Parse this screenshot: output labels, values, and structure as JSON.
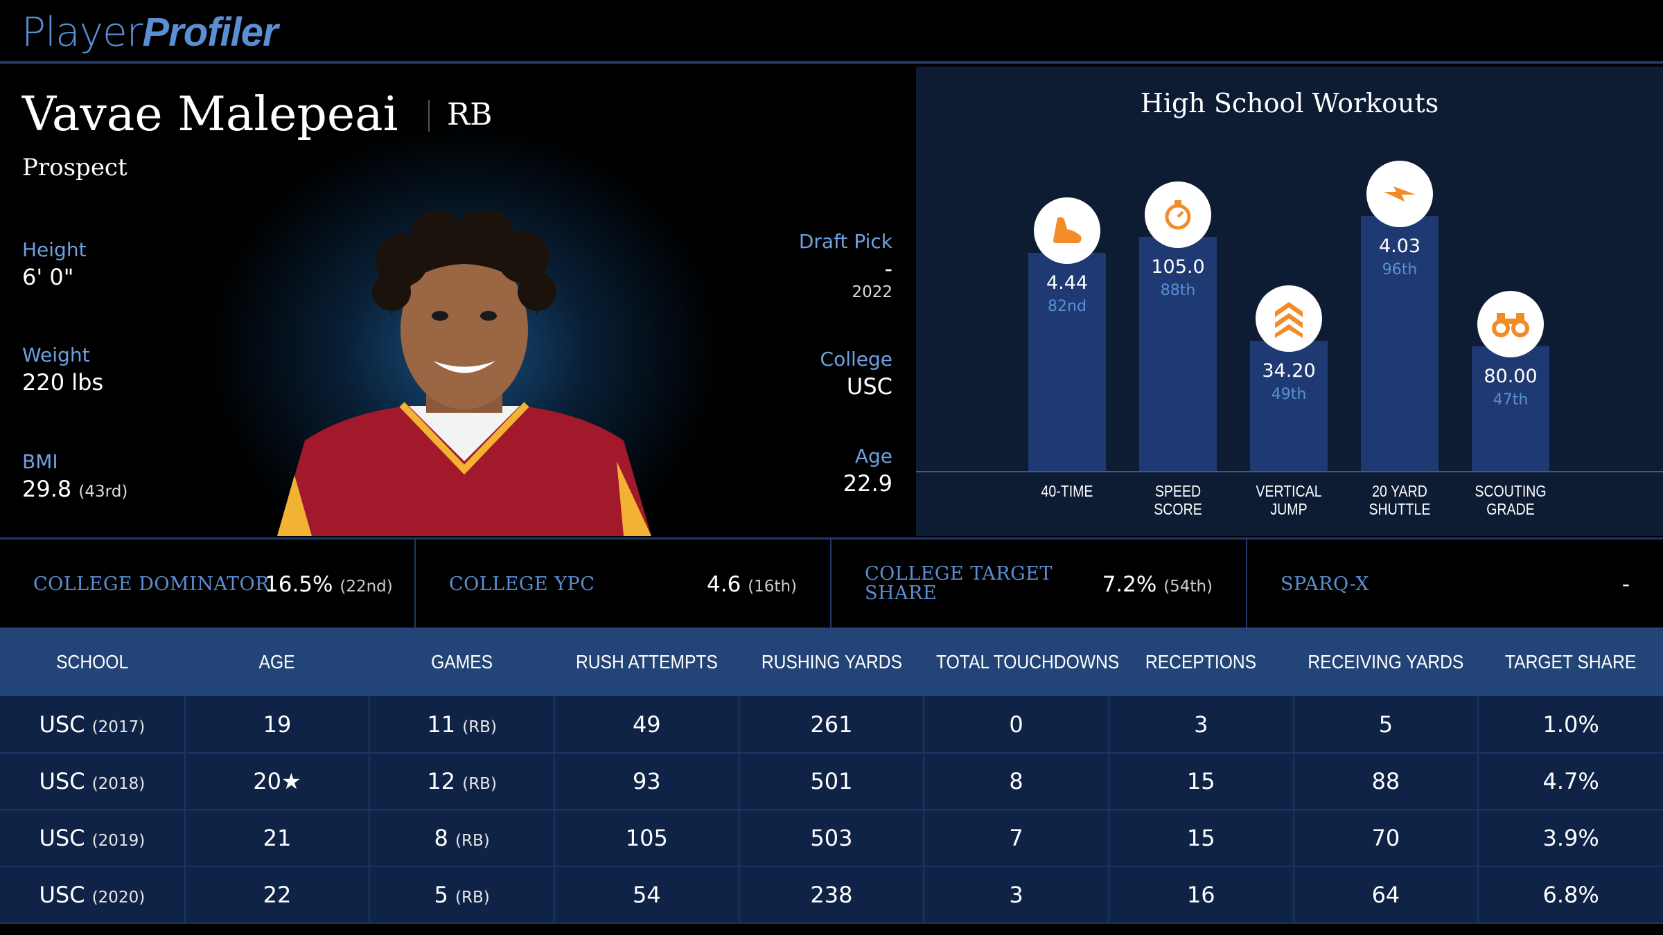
{
  "brand": {
    "logo_part1": "Player",
    "logo_part2": "Profiler"
  },
  "player": {
    "name": "Vavae Malepeai",
    "position": "RB",
    "status": "Prospect",
    "height_label": "Height",
    "height": "6' 0\"",
    "weight_label": "Weight",
    "weight": "220 lbs",
    "bmi_label": "BMI",
    "bmi": "29.8",
    "bmi_rank": "(43rd)",
    "draft_label": "Draft Pick",
    "draft_pick": "-",
    "draft_year": "2022",
    "college_label": "College",
    "college": "USC",
    "age_label": "Age",
    "age": "22.9"
  },
  "workouts": {
    "title": "High School Workouts",
    "items": [
      {
        "value": "4.44",
        "percentile": "82nd",
        "pct_num": 82,
        "label1": "40-TIME",
        "label2": "",
        "icon": "running-shoe-icon"
      },
      {
        "value": "105.0",
        "percentile": "88th",
        "pct_num": 88,
        "label1": "SPEED",
        "label2": "SCORE",
        "icon": "stopwatch-icon"
      },
      {
        "value": "34.20",
        "percentile": "49th",
        "pct_num": 49,
        "label1": "VERTICAL",
        "label2": "JUMP",
        "icon": "chevrons-up-icon"
      },
      {
        "value": "4.03",
        "percentile": "96th",
        "pct_num": 96,
        "label1": "20 YARD",
        "label2": "SHUTTLE",
        "icon": "lightning-icon"
      },
      {
        "value": "80.00",
        "percentile": "47th",
        "pct_num": 47,
        "label1": "SCOUTING",
        "label2": "GRADE",
        "icon": "binoculars-icon"
      }
    ]
  },
  "college_stats": [
    {
      "label": "COLLEGE DOMINATOR",
      "value": "16.5%",
      "rank": "(22nd)"
    },
    {
      "label": "COLLEGE YPC",
      "value": "4.6",
      "rank": "(16th)"
    },
    {
      "label": "COLLEGE TARGET SHARE",
      "value": "7.2%",
      "rank": "(54th)"
    },
    {
      "label": "SPARQ-X",
      "value": "-",
      "rank": ""
    }
  ],
  "table": {
    "headers": [
      "SCHOOL",
      "AGE",
      "GAMES",
      "RUSH ATTEMPTS",
      "RUSHING YARDS",
      "TOTAL TOUCHDOWNS",
      "RECEPTIONS",
      "RECEIVING YARDS",
      "TARGET SHARE"
    ],
    "rows": [
      {
        "school": "USC",
        "year": "(2017)",
        "age": "19",
        "games": "11",
        "games_pos": "(RB)",
        "rush_att": "49",
        "rush_yds": "261",
        "tds": "0",
        "rec": "3",
        "rec_yds": "5",
        "tgt": "1.0%"
      },
      {
        "school": "USC",
        "year": "(2018)",
        "age": "20★",
        "games": "12",
        "games_pos": "(RB)",
        "rush_att": "93",
        "rush_yds": "501",
        "tds": "8",
        "rec": "15",
        "rec_yds": "88",
        "tgt": "4.7%"
      },
      {
        "school": "USC",
        "year": "(2019)",
        "age": "21",
        "games": "8",
        "games_pos": "(RB)",
        "rush_att": "105",
        "rush_yds": "503",
        "tds": "7",
        "rec": "15",
        "rec_yds": "70",
        "tgt": "3.9%"
      },
      {
        "school": "USC",
        "year": "(2020)",
        "age": "22",
        "games": "5",
        "games_pos": "(RB)",
        "rush_att": "54",
        "rush_yds": "238",
        "tds": "3",
        "rec": "16",
        "rec_yds": "64",
        "tgt": "6.8%"
      }
    ]
  },
  "colors": {
    "accent_blue": "#5b8fd4",
    "icon_orange": "#f28c28",
    "bar_blue": "#1f3a72",
    "header_blue": "#234476"
  }
}
